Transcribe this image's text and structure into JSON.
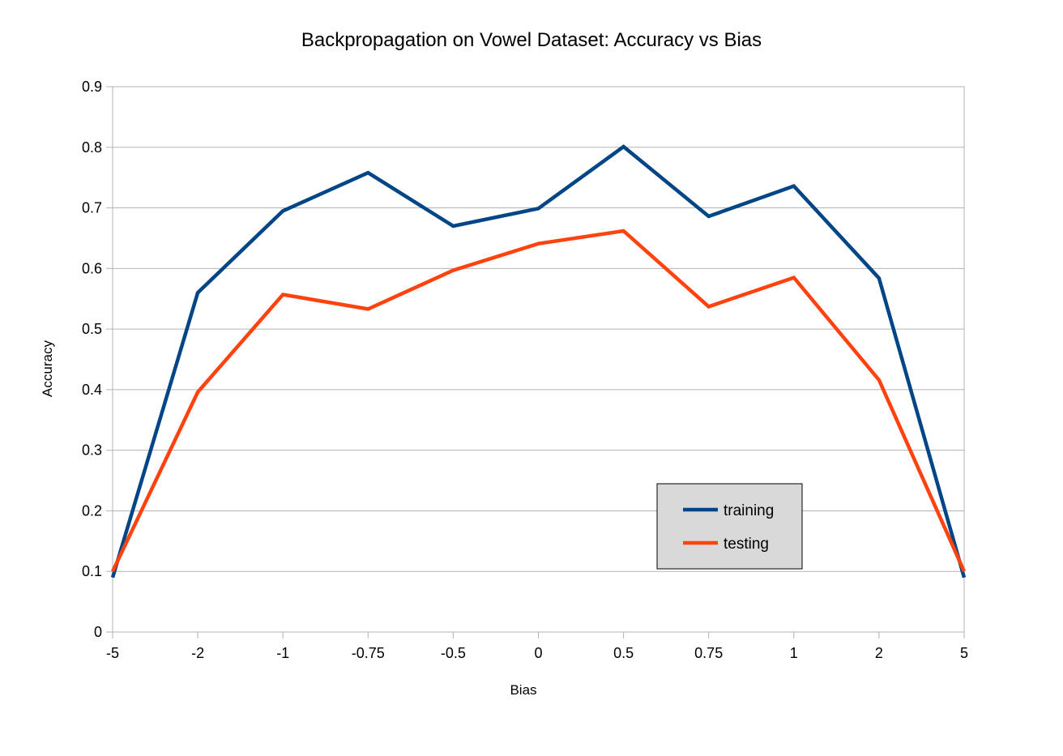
{
  "chart_data": {
    "type": "line",
    "title": "Backpropagation on Vowel Dataset: Accuracy vs Bias",
    "xlabel": "Bias",
    "ylabel": "Accuracy",
    "categories": [
      "-5",
      "-2",
      "-1",
      "-0.75",
      "-0.5",
      "0",
      "0.5",
      "0.75",
      "1",
      "2",
      "5"
    ],
    "ylim": [
      0,
      0.9
    ],
    "yticks": [
      "0",
      "0.1",
      "0.2",
      "0.3",
      "0.4",
      "0.5",
      "0.6",
      "0.7",
      "0.8",
      "0.9"
    ],
    "grid": true,
    "legend_position": "bottom-right inside plot",
    "series": [
      {
        "name": "training",
        "color": "#004586",
        "values": [
          0.09,
          0.56,
          0.695,
          0.758,
          0.67,
          0.699,
          0.801,
          0.686,
          0.736,
          0.584,
          0.09
        ]
      },
      {
        "name": "testing",
        "color": "#ff420e",
        "values": [
          0.1,
          0.396,
          0.557,
          0.533,
          0.597,
          0.641,
          0.662,
          0.537,
          0.585,
          0.416,
          0.1
        ]
      }
    ]
  }
}
